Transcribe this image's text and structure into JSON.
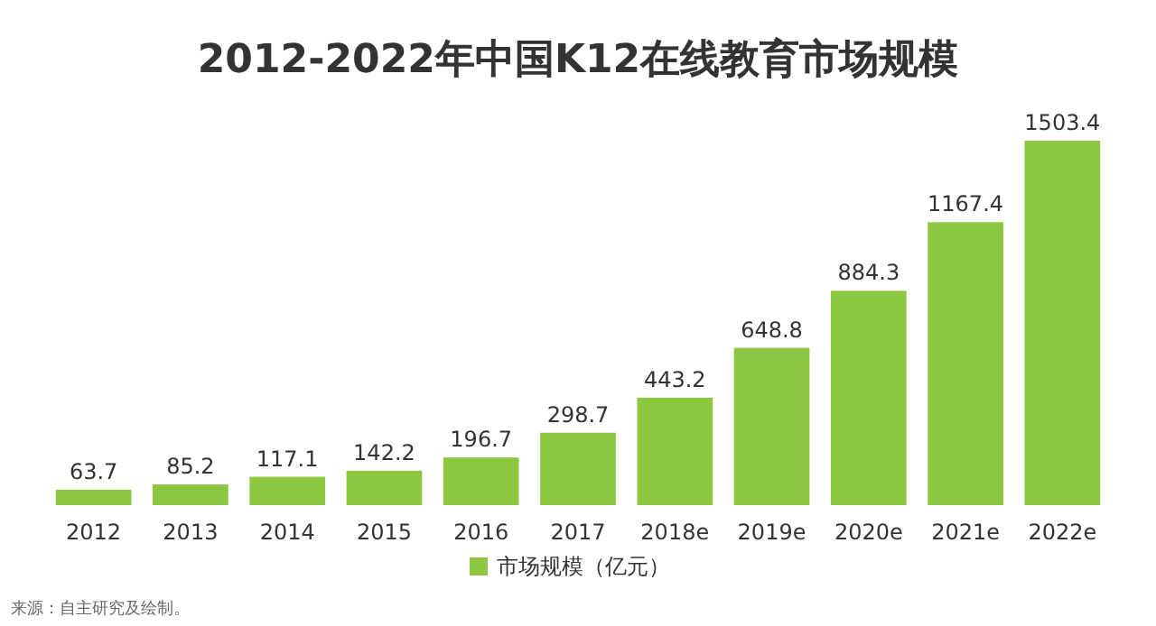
{
  "chart_data": {
    "type": "bar",
    "title": "2012-2022年中国K12在线教育市场规模",
    "categories": [
      "2012",
      "2013",
      "2014",
      "2015",
      "2016",
      "2017",
      "2018e",
      "2019e",
      "2020e",
      "2021e",
      "2022e"
    ],
    "series": [
      {
        "name": "市场规模（亿元）",
        "color": "#8dc63f",
        "values": [
          63.7,
          85.2,
          117.1,
          142.2,
          196.7,
          298.7,
          443.2,
          648.8,
          884.3,
          1167.4,
          1503.4
        ]
      }
    ],
    "data_labels": true,
    "legend": "bottom",
    "annotations": [
      "来源：自主研究及绘制。"
    ]
  }
}
